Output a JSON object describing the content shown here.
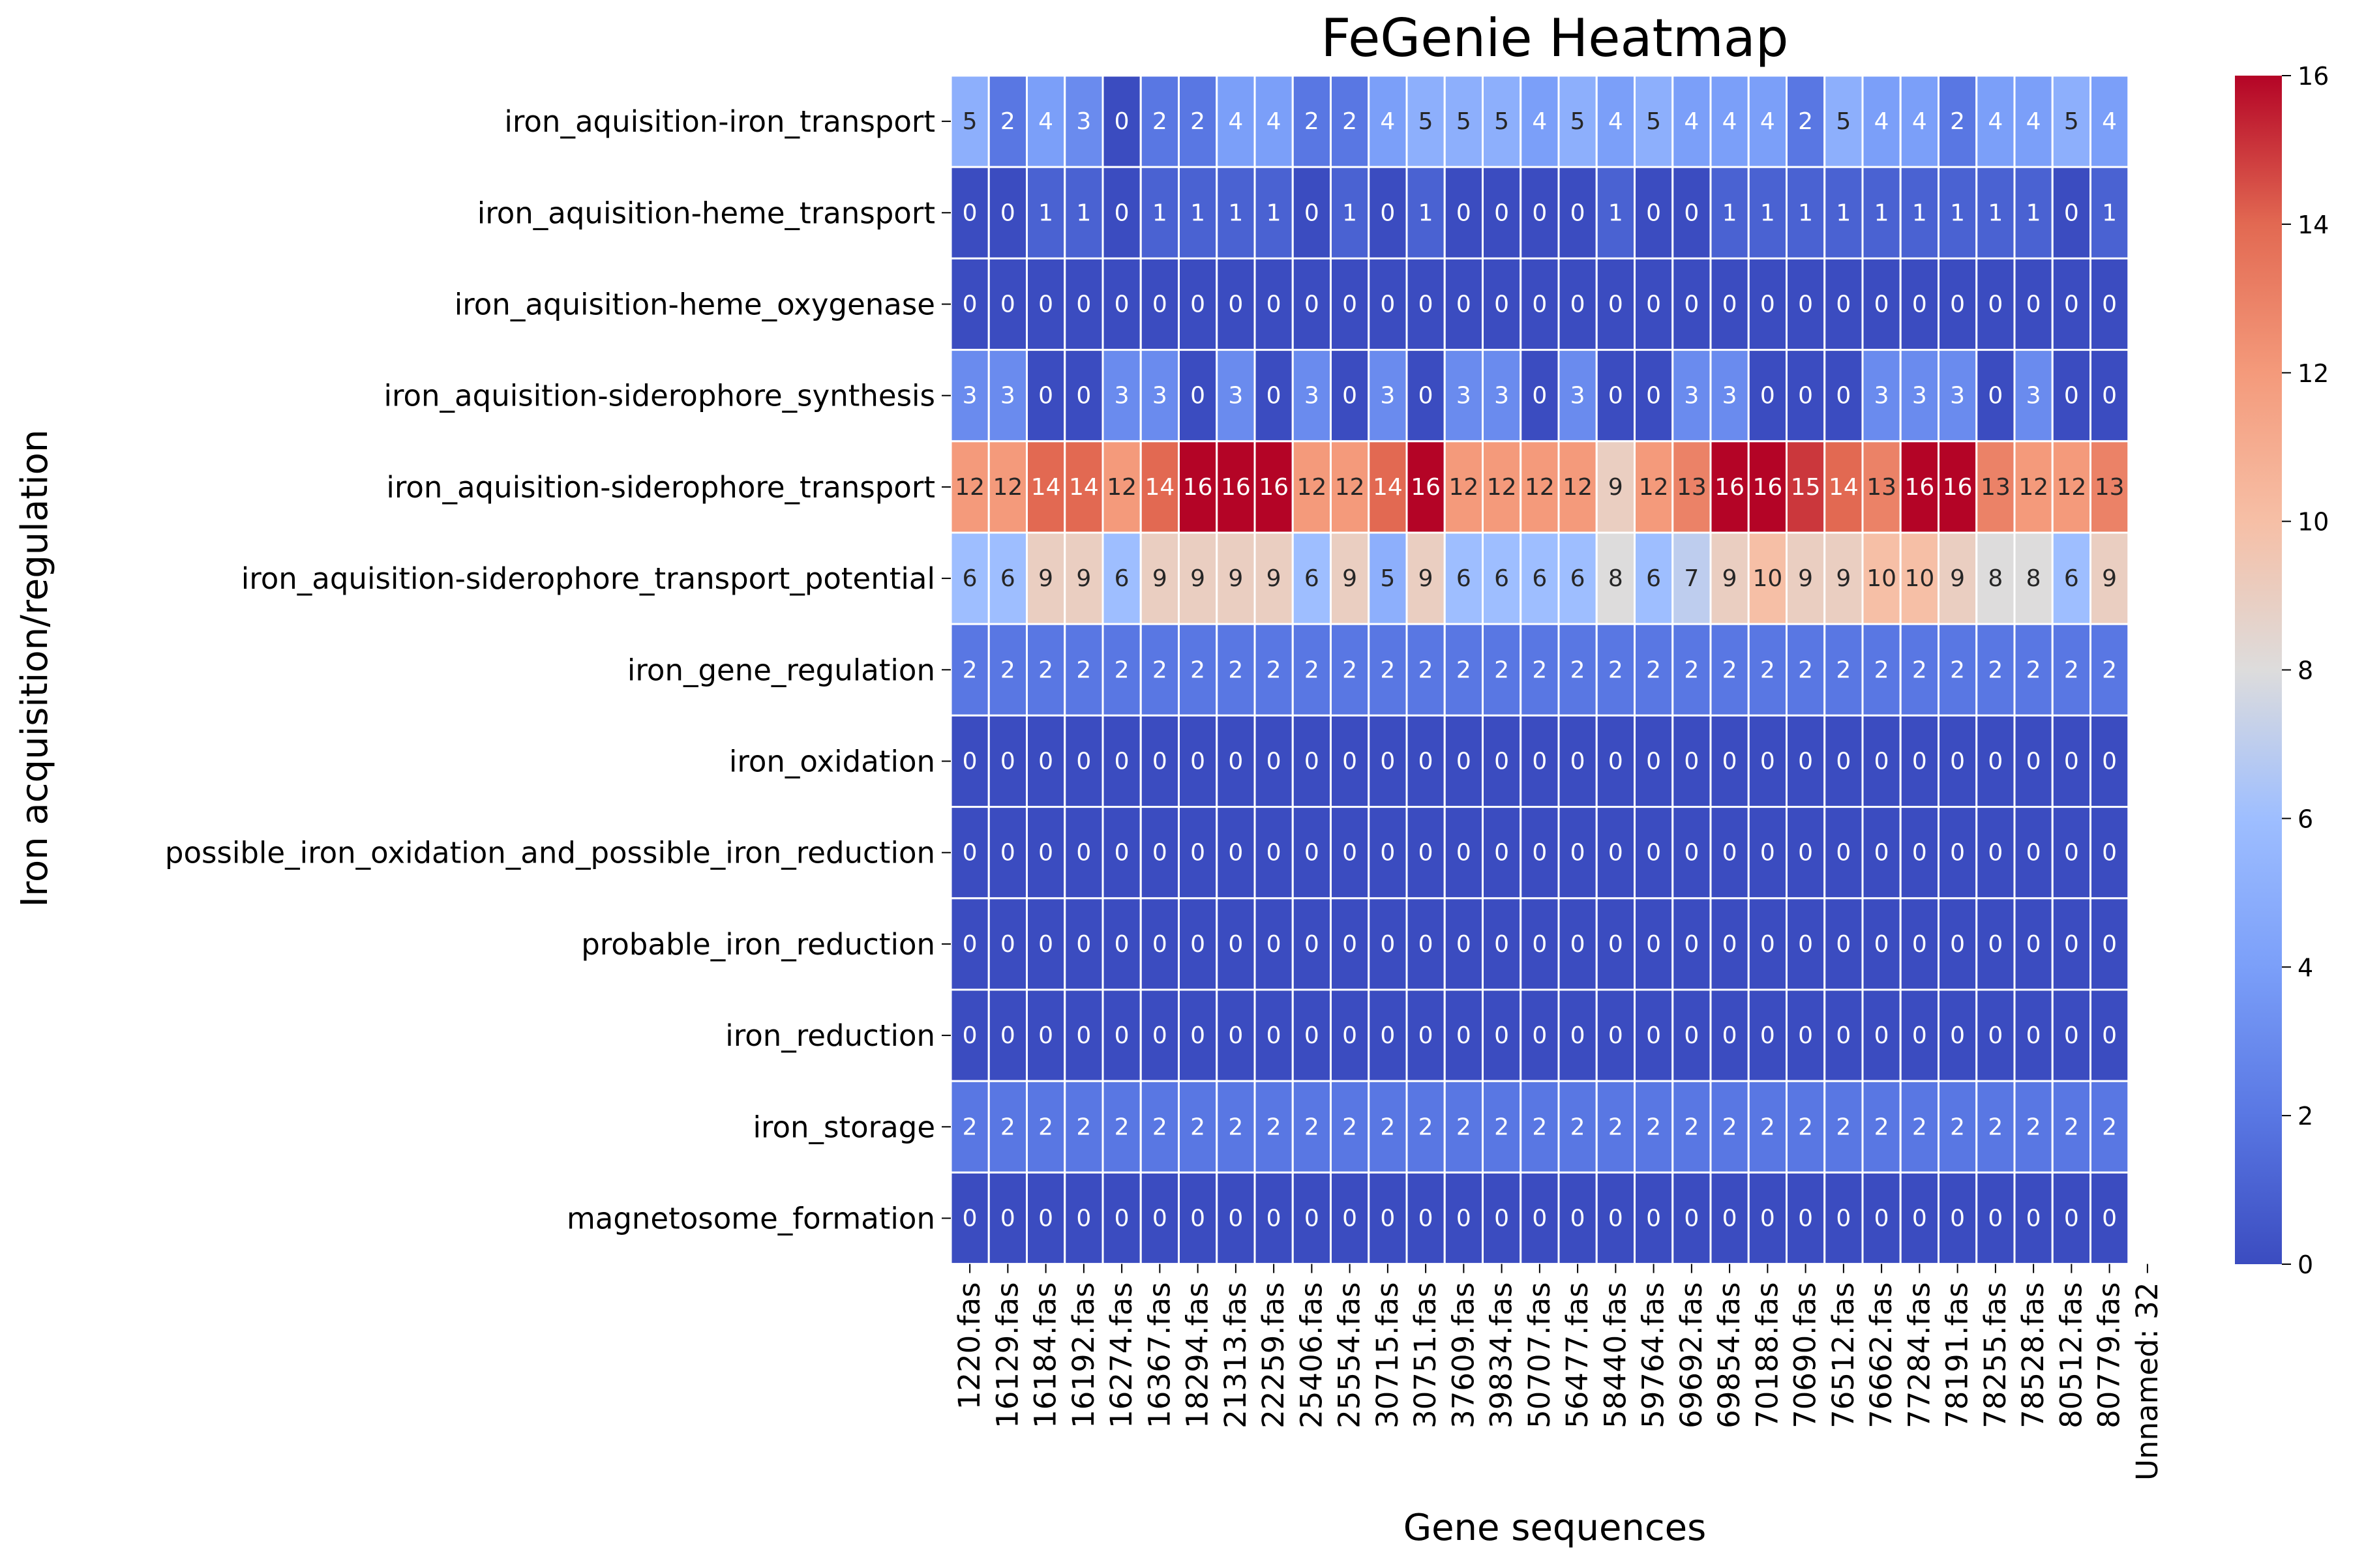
{
  "chart_data": {
    "type": "heatmap",
    "title": "FeGenie Heatmap",
    "xlabel": "Gene sequences",
    "ylabel": "Iron acquisition/regulation",
    "columns": [
      "1220.fas",
      "16129.fas",
      "16184.fas",
      "16192.fas",
      "16274.fas",
      "16367.fas",
      "18294.fas",
      "21313.fas",
      "22259.fas",
      "25406.fas",
      "25554.fas",
      "30715.fas",
      "30751.fas",
      "37609.fas",
      "39834.fas",
      "50707.fas",
      "56477.fas",
      "58440.fas",
      "59764.fas",
      "69692.fas",
      "69854.fas",
      "70188.fas",
      "70690.fas",
      "76512.fas",
      "76662.fas",
      "77284.fas",
      "78191.fas",
      "78255.fas",
      "78528.fas",
      "80512.fas",
      "80779.fas",
      "Unnamed: 32"
    ],
    "rows": [
      "iron_aquisition-iron_transport",
      "iron_aquisition-heme_transport",
      "iron_aquisition-heme_oxygenase",
      "iron_aquisition-siderophore_synthesis",
      "iron_aquisition-siderophore_transport",
      "iron_aquisition-siderophore_transport_potential",
      "iron_gene_regulation",
      "iron_oxidation",
      "possible_iron_oxidation_and_possible_iron_reduction",
      "probable_iron_reduction",
      "iron_reduction",
      "iron_storage",
      "magnetosome_formation"
    ],
    "values": [
      [
        5,
        2,
        4,
        3,
        0,
        2,
        2,
        4,
        4,
        2,
        2,
        4,
        5,
        5,
        5,
        4,
        5,
        4,
        5,
        4,
        4,
        4,
        2,
        5,
        4,
        4,
        2,
        4,
        4,
        5,
        4,
        null
      ],
      [
        0,
        0,
        1,
        1,
        0,
        1,
        1,
        1,
        1,
        0,
        1,
        0,
        1,
        0,
        0,
        0,
        0,
        1,
        0,
        0,
        1,
        1,
        1,
        1,
        1,
        1,
        1,
        1,
        1,
        0,
        1,
        null
      ],
      [
        0,
        0,
        0,
        0,
        0,
        0,
        0,
        0,
        0,
        0,
        0,
        0,
        0,
        0,
        0,
        0,
        0,
        0,
        0,
        0,
        0,
        0,
        0,
        0,
        0,
        0,
        0,
        0,
        0,
        0,
        0,
        null
      ],
      [
        3,
        3,
        0,
        0,
        3,
        3,
        0,
        3,
        0,
        3,
        0,
        3,
        0,
        3,
        3,
        0,
        3,
        0,
        0,
        3,
        3,
        0,
        0,
        0,
        3,
        3,
        3,
        0,
        3,
        0,
        0,
        null
      ],
      [
        12,
        12,
        14,
        14,
        12,
        14,
        16,
        16,
        16,
        12,
        12,
        14,
        16,
        12,
        12,
        12,
        12,
        9,
        12,
        13,
        16,
        16,
        15,
        14,
        13,
        16,
        16,
        13,
        12,
        12,
        13,
        null
      ],
      [
        6,
        6,
        9,
        9,
        6,
        9,
        9,
        9,
        9,
        6,
        9,
        5,
        9,
        6,
        6,
        6,
        6,
        8,
        6,
        7,
        9,
        10,
        9,
        9,
        10,
        10,
        9,
        8,
        8,
        6,
        9,
        null
      ],
      [
        2,
        2,
        2,
        2,
        2,
        2,
        2,
        2,
        2,
        2,
        2,
        2,
        2,
        2,
        2,
        2,
        2,
        2,
        2,
        2,
        2,
        2,
        2,
        2,
        2,
        2,
        2,
        2,
        2,
        2,
        2,
        null
      ],
      [
        0,
        0,
        0,
        0,
        0,
        0,
        0,
        0,
        0,
        0,
        0,
        0,
        0,
        0,
        0,
        0,
        0,
        0,
        0,
        0,
        0,
        0,
        0,
        0,
        0,
        0,
        0,
        0,
        0,
        0,
        0,
        null
      ],
      [
        0,
        0,
        0,
        0,
        0,
        0,
        0,
        0,
        0,
        0,
        0,
        0,
        0,
        0,
        0,
        0,
        0,
        0,
        0,
        0,
        0,
        0,
        0,
        0,
        0,
        0,
        0,
        0,
        0,
        0,
        0,
        null
      ],
      [
        0,
        0,
        0,
        0,
        0,
        0,
        0,
        0,
        0,
        0,
        0,
        0,
        0,
        0,
        0,
        0,
        0,
        0,
        0,
        0,
        0,
        0,
        0,
        0,
        0,
        0,
        0,
        0,
        0,
        0,
        0,
        null
      ],
      [
        0,
        0,
        0,
        0,
        0,
        0,
        0,
        0,
        0,
        0,
        0,
        0,
        0,
        0,
        0,
        0,
        0,
        0,
        0,
        0,
        0,
        0,
        0,
        0,
        0,
        0,
        0,
        0,
        0,
        0,
        0,
        null
      ],
      [
        2,
        2,
        2,
        2,
        2,
        2,
        2,
        2,
        2,
        2,
        2,
        2,
        2,
        2,
        2,
        2,
        2,
        2,
        2,
        2,
        2,
        2,
        2,
        2,
        2,
        2,
        2,
        2,
        2,
        2,
        2,
        null
      ],
      [
        0,
        0,
        0,
        0,
        0,
        0,
        0,
        0,
        0,
        0,
        0,
        0,
        0,
        0,
        0,
        0,
        0,
        0,
        0,
        0,
        0,
        0,
        0,
        0,
        0,
        0,
        0,
        0,
        0,
        0,
        0,
        null
      ]
    ],
    "colorbar": {
      "colormap": "coolwarm",
      "vmin": 0,
      "vmax": 16,
      "ticks": [
        0,
        2,
        4,
        6,
        8,
        10,
        12,
        14,
        16
      ]
    }
  }
}
